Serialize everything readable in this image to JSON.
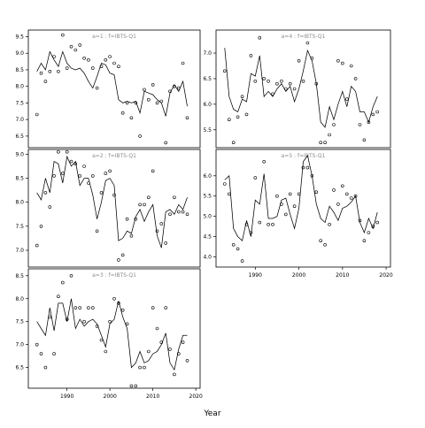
{
  "colors": {
    "background": "#ffffff",
    "line": "#000000",
    "points": "#000000",
    "panel_title": "#8c8c8c"
  },
  "chart_data": {
    "type": "scatter",
    "xlabel": "Year",
    "xlim": [
      1981,
      2021
    ],
    "x_ticks": [
      1990,
      2000,
      2010,
      2020
    ],
    "grid": false,
    "legend": "none",
    "panels": [
      {
        "title": "a=1 : f=IBTS-Q1",
        "ylim": [
          6.15,
          9.7
        ],
        "y_ticks": [
          6.5,
          7.0,
          7.5,
          8.0,
          8.5,
          9.0,
          9.5
        ],
        "observed": {
          "x": [
            1983,
            1984,
            1985,
            1986,
            1987,
            1988,
            1989,
            1990,
            1991,
            1992,
            1993,
            1994,
            1995,
            1996,
            1997,
            1998,
            1999,
            2000,
            2001,
            2002,
            2003,
            2004,
            2005,
            2006,
            2007,
            2008,
            2009,
            2010,
            2011,
            2012,
            2013,
            2014,
            2015,
            2016,
            2017,
            2018
          ],
          "y": [
            7.15,
            8.4,
            8.15,
            8.45,
            8.9,
            8.45,
            9.55,
            8.55,
            9.2,
            9.1,
            9.25,
            8.85,
            8.8,
            8.55,
            7.95,
            8.6,
            8.8,
            8.9,
            8.7,
            8.6,
            7.2,
            7.5,
            7.05,
            7.5,
            6.5,
            7.9,
            7.6,
            8.05,
            7.5,
            7.55,
            6.3,
            7.85,
            8.0,
            7.95,
            8.7,
            7.05
          ]
        },
        "fitted": {
          "x": [
            1983,
            1984,
            1985,
            1986,
            1987,
            1988,
            1989,
            1990,
            1991,
            1992,
            1993,
            1994,
            1995,
            1996,
            1997,
            1998,
            1999,
            2000,
            2001,
            2002,
            2003,
            2004,
            2005,
            2006,
            2007,
            2008,
            2009,
            2010,
            2011,
            2012,
            2013,
            2014,
            2015,
            2016,
            2017,
            2018
          ],
          "y": [
            8.45,
            8.7,
            8.5,
            9.05,
            8.8,
            8.6,
            9.05,
            8.7,
            8.55,
            8.5,
            8.55,
            8.4,
            8.15,
            7.95,
            8.3,
            8.7,
            8.65,
            8.4,
            8.35,
            7.6,
            7.5,
            7.55,
            7.5,
            7.55,
            7.2,
            7.85,
            7.8,
            7.75,
            7.6,
            7.5,
            7.1,
            7.8,
            8.05,
            7.85,
            8.15,
            7.4
          ]
        }
      },
      {
        "title": "a=2 : f=IBTS-Q1",
        "ylim": [
          6.65,
          9.1
        ],
        "y_ticks": [
          7.0,
          7.5,
          8.0,
          8.5,
          9.0
        ],
        "observed": {
          "x": [
            1983,
            1984,
            1985,
            1986,
            1987,
            1988,
            1989,
            1990,
            1991,
            1992,
            1993,
            1994,
            1995,
            1996,
            1997,
            1998,
            1999,
            2000,
            2001,
            2002,
            2003,
            2004,
            2005,
            2006,
            2007,
            2008,
            2009,
            2010,
            2011,
            2012,
            2013,
            2014,
            2015,
            2016,
            2017,
            2018
          ],
          "y": [
            7.1,
            7.5,
            8.2,
            7.9,
            8.55,
            9.05,
            8.6,
            9.05,
            8.85,
            8.8,
            8.55,
            8.75,
            8.4,
            8.55,
            7.4,
            8.2,
            8.6,
            8.65,
            8.15,
            6.8,
            6.9,
            7.65,
            7.3,
            7.65,
            7.95,
            7.95,
            8.1,
            8.65,
            7.4,
            7.55,
            7.15,
            7.75,
            8.1,
            7.8,
            7.8,
            7.75
          ]
        },
        "fitted": {
          "x": [
            1983,
            1984,
            1985,
            1986,
            1987,
            1988,
            1989,
            1990,
            1991,
            1992,
            1993,
            1994,
            1995,
            1996,
            1997,
            1998,
            1999,
            2000,
            2001,
            2002,
            2003,
            2004,
            2005,
            2006,
            2007,
            2008,
            2009,
            2010,
            2011,
            2012,
            2013,
            2014,
            2015,
            2016,
            2017,
            2018
          ],
          "y": [
            8.2,
            8.05,
            8.5,
            8.2,
            8.85,
            8.8,
            8.4,
            8.95,
            8.75,
            8.85,
            8.35,
            8.5,
            8.5,
            8.15,
            7.65,
            8.0,
            8.45,
            8.5,
            8.35,
            7.2,
            7.25,
            7.4,
            7.35,
            7.7,
            7.85,
            7.6,
            7.8,
            7.95,
            7.3,
            7.05,
            7.8,
            7.85,
            7.75,
            7.95,
            7.85,
            8.1
          ]
        }
      },
      {
        "title": "a=3 : f=IBTS-Q1",
        "ylim": [
          6.05,
          8.65
        ],
        "y_ticks": [
          6.5,
          7.0,
          7.5,
          8.0,
          8.5
        ],
        "observed": {
          "x": [
            1983,
            1984,
            1985,
            1986,
            1987,
            1988,
            1989,
            1990,
            1991,
            1992,
            1993,
            1994,
            1995,
            1996,
            1997,
            1998,
            1999,
            2000,
            2001,
            2002,
            2003,
            2004,
            2005,
            2006,
            2007,
            2008,
            2009,
            2010,
            2011,
            2012,
            2013,
            2014,
            2015,
            2016,
            2017,
            2018
          ],
          "y": [
            7.0,
            6.8,
            6.5,
            7.6,
            6.8,
            8.05,
            8.35,
            7.55,
            8.5,
            7.8,
            7.8,
            7.5,
            7.8,
            7.8,
            7.4,
            7.1,
            6.85,
            7.5,
            8.0,
            7.9,
            7.75,
            7.45,
            6.1,
            6.1,
            6.5,
            6.5,
            6.85,
            7.8,
            7.35,
            7.05,
            7.8,
            6.9,
            6.35,
            6.8,
            7.05,
            6.65
          ]
        },
        "fitted": {
          "x": [
            1983,
            1984,
            1985,
            1986,
            1987,
            1988,
            1989,
            1990,
            1991,
            1992,
            1993,
            1994,
            1995,
            1996,
            1997,
            1998,
            1999,
            2000,
            2001,
            2002,
            2003,
            2004,
            2005,
            2006,
            2007,
            2008,
            2009,
            2010,
            2011,
            2012,
            2013,
            2014,
            2015,
            2016,
            2017,
            2018
          ],
          "y": [
            7.5,
            7.35,
            7.2,
            7.8,
            7.3,
            7.9,
            7.9,
            7.5,
            8.0,
            7.35,
            7.55,
            7.4,
            7.5,
            7.55,
            7.45,
            7.2,
            6.95,
            7.45,
            7.55,
            7.95,
            7.6,
            7.35,
            6.5,
            6.6,
            6.85,
            6.6,
            6.65,
            6.8,
            6.85,
            7.0,
            7.25,
            6.6,
            6.45,
            6.9,
            7.2,
            7.2
          ]
        }
      },
      {
        "title": "a=4 : f=IBTS-Q1",
        "ylim": [
          5.15,
          7.45
        ],
        "y_ticks": [
          5.5,
          6.0,
          6.5,
          7.0
        ],
        "observed": {
          "x": [
            1983,
            1984,
            1985,
            1986,
            1987,
            1988,
            1989,
            1990,
            1991,
            1992,
            1993,
            1994,
            1995,
            1996,
            1997,
            1998,
            1999,
            2000,
            2001,
            2002,
            2003,
            2004,
            2005,
            2006,
            2007,
            2008,
            2009,
            2010,
            2011,
            2012,
            2013,
            2014,
            2015,
            2016,
            2017,
            2018
          ],
          "y": [
            6.65,
            5.7,
            5.25,
            5.75,
            6.15,
            5.8,
            6.95,
            6.45,
            7.3,
            6.5,
            6.45,
            6.2,
            6.4,
            6.45,
            6.3,
            6.4,
            6.3,
            6.85,
            6.45,
            7.2,
            6.9,
            6.4,
            5.25,
            5.25,
            5.4,
            5.6,
            6.85,
            6.8,
            6.1,
            6.75,
            6.5,
            5.6,
            5.3,
            5.65,
            5.8,
            5.85
          ]
        },
        "fitted": {
          "x": [
            1983,
            1984,
            1985,
            1986,
            1987,
            1988,
            1989,
            1990,
            1991,
            1992,
            1993,
            1994,
            1995,
            1996,
            1997,
            1998,
            1999,
            2000,
            2001,
            2002,
            2003,
            2004,
            2005,
            2006,
            2007,
            2008,
            2009,
            2010,
            2011,
            2012,
            2013,
            2014,
            2015,
            2016,
            2017,
            2018
          ],
          "y": [
            7.1,
            6.15,
            5.9,
            5.85,
            6.1,
            6.05,
            6.6,
            6.55,
            6.95,
            6.15,
            6.25,
            6.15,
            6.3,
            6.4,
            6.25,
            6.35,
            6.05,
            6.3,
            6.65,
            7.05,
            6.85,
            6.4,
            5.65,
            5.55,
            5.95,
            5.7,
            6.0,
            6.25,
            5.95,
            6.35,
            6.25,
            5.85,
            5.85,
            5.65,
            5.95,
            6.15
          ]
        }
      },
      {
        "title": "a=5 : f=IBTS-Q1",
        "ylim": [
          3.75,
          6.65
        ],
        "y_ticks": [
          4.0,
          4.5,
          5.0,
          5.5,
          6.0
        ],
        "observed": {
          "x": [
            1983,
            1984,
            1985,
            1986,
            1987,
            1988,
            1989,
            1990,
            1991,
            1992,
            1993,
            1994,
            1995,
            1996,
            1997,
            1998,
            1999,
            2000,
            2001,
            2002,
            2003,
            2004,
            2005,
            2006,
            2007,
            2008,
            2009,
            2010,
            2011,
            2012,
            2013,
            2014,
            2015,
            2016,
            2017,
            2018
          ],
          "y": [
            5.8,
            5.55,
            4.3,
            4.2,
            3.9,
            4.8,
            4.6,
            5.95,
            4.85,
            6.35,
            4.8,
            4.8,
            5.5,
            5.3,
            5.05,
            5.55,
            5.25,
            5.55,
            6.2,
            6.2,
            6.0,
            5.6,
            4.4,
            4.3,
            4.8,
            5.65,
            5.3,
            5.75,
            5.55,
            5.45,
            5.5,
            4.9,
            4.4,
            4.6,
            4.75,
            4.85
          ]
        },
        "fitted": {
          "x": [
            1983,
            1984,
            1985,
            1986,
            1987,
            1988,
            1989,
            1990,
            1991,
            1992,
            1993,
            1994,
            1995,
            1996,
            1997,
            1998,
            1999,
            2000,
            2001,
            2002,
            2003,
            2004,
            2005,
            2006,
            2007,
            2008,
            2009,
            2010,
            2011,
            2012,
            2013,
            2014,
            2015,
            2016,
            2017,
            2018
          ],
          "y": [
            5.9,
            6.0,
            4.7,
            4.5,
            4.4,
            4.9,
            4.5,
            5.4,
            5.3,
            6.05,
            4.95,
            4.95,
            5.0,
            5.4,
            5.45,
            5.05,
            4.7,
            5.2,
            6.35,
            6.5,
            6.0,
            5.3,
            4.95,
            4.85,
            5.25,
            5.1,
            4.9,
            5.2,
            5.25,
            5.35,
            5.5,
            4.85,
            4.6,
            4.95,
            4.7,
            5.1
          ]
        }
      }
    ]
  }
}
